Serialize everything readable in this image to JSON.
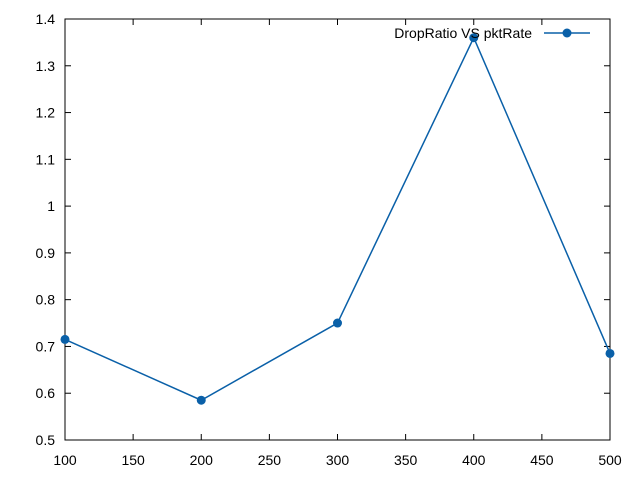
{
  "chart_data": {
    "type": "line",
    "x": [
      100,
      200,
      300,
      400,
      500
    ],
    "series": [
      {
        "name": "DropRatio VS pktRate",
        "values": [
          0.715,
          0.585,
          0.75,
          1.36,
          0.685
        ],
        "color": "#0a60a8"
      }
    ],
    "xlim": [
      100,
      500
    ],
    "ylim": [
      0.5,
      1.4
    ],
    "x_ticks": [
      100,
      150,
      200,
      250,
      300,
      350,
      400,
      450,
      500
    ],
    "y_ticks": [
      0.5,
      0.6,
      0.7,
      0.8,
      0.9,
      1,
      1.1,
      1.2,
      1.3,
      1.4
    ],
    "x_tick_labels": [
      "100",
      "150",
      "200",
      "250",
      "300",
      "350",
      "400",
      "450",
      "500"
    ],
    "y_tick_labels": [
      "0.5",
      "0.6",
      "0.7",
      "0.8",
      "0.9",
      "1",
      "1.1",
      "1.2",
      "1.3",
      "1.4"
    ],
    "title": "",
    "xlabel": "",
    "ylabel": "",
    "grid": false,
    "legend_position": "top-right",
    "marker": "circle"
  }
}
